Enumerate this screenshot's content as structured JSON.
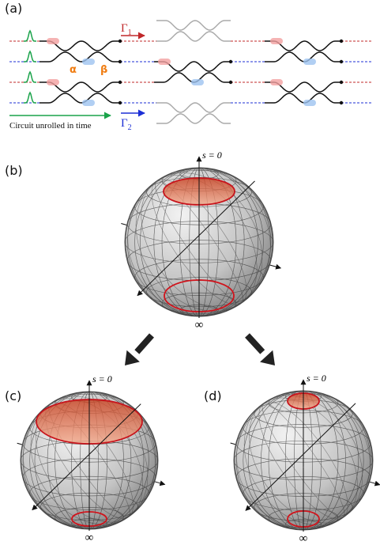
{
  "panel_a": {
    "label": "(a)",
    "gamma_1": {
      "symbol": "Γ",
      "subscript": "1"
    },
    "gamma_2": {
      "symbol": "Γ",
      "subscript": "2"
    },
    "alpha": "α",
    "beta": "β",
    "time_caption": "Circuit unrolled in time"
  },
  "panel_b": {
    "label": "(b)",
    "top_label": "s = 0",
    "bottom_label": "∞"
  },
  "panel_c": {
    "label": "(c)",
    "top_label": "s = 0",
    "bottom_label": "∞"
  },
  "panel_d": {
    "label": "(d)",
    "top_label": "s = 0",
    "bottom_label": "∞"
  }
}
